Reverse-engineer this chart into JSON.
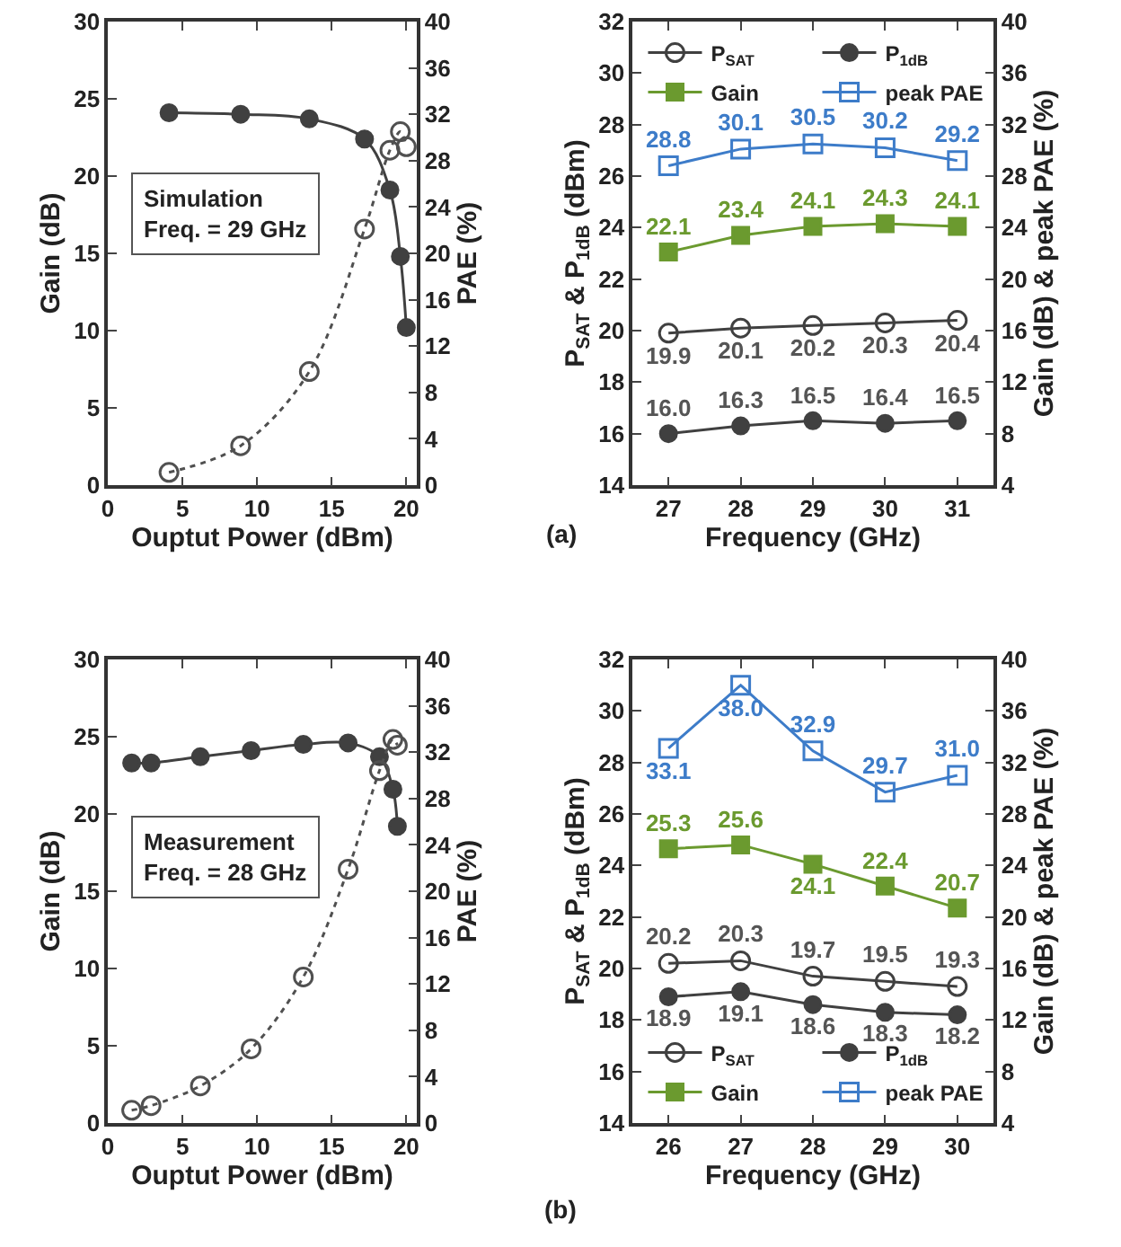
{
  "chart_data": [
    {
      "type": "line",
      "xlabel": "Ouptut Power (dBm)",
      "ylabel": "Gain (dB)",
      "y2label": "PAE (%)",
      "x": [
        4.1,
        8.9,
        13.5,
        17.2,
        18.9,
        19.6,
        20.0
      ],
      "xlim": [
        0,
        20.7
      ],
      "xticks": [
        0,
        5,
        10,
        15,
        20
      ],
      "ylim": [
        0,
        30
      ],
      "yticks": [
        0,
        5,
        10,
        15,
        20,
        25,
        30
      ],
      "y2lim": [
        0,
        40
      ],
      "y2ticks": [
        0,
        4,
        8,
        12,
        16,
        20,
        24,
        28,
        32,
        36,
        40
      ],
      "grid": false,
      "legend": false,
      "annotations": [
        "Simulation\nFreq. = 29 GHz"
      ],
      "series": [
        {
          "color": "#404040",
          "marker": "circle",
          "line_style": "solid",
          "values": [
            24.1,
            24.0,
            23.7,
            22.4,
            19.1,
            14.8,
            10.2
          ]
        },
        {
          "color": "#505050",
          "marker": "circle-open",
          "line_style": "dotted",
          "axis": "y2",
          "values": [
            1.1,
            3.4,
            9.8,
            22.1,
            28.9,
            30.5,
            29.2
          ]
        }
      ]
    },
    {
      "type": "line",
      "xlabel": "Frequency (GHz)",
      "ylabel": "P$_{SAT}$ & P$_{1dB}$ (dBm)",
      "y2label": "Gain (dB) & peak PAE (%)",
      "x": [
        27,
        28,
        29,
        30,
        31
      ],
      "xlim": [
        26.5,
        31.5
      ],
      "xticks": [
        27,
        28,
        29,
        30,
        31
      ],
      "ylim": [
        14,
        32
      ],
      "yticks": [
        14,
        16,
        18,
        20,
        22,
        24,
        26,
        28,
        30,
        32
      ],
      "y2lim": [
        4,
        40
      ],
      "y2ticks": [
        4,
        8,
        12,
        16,
        20,
        24,
        28,
        32,
        36,
        40
      ],
      "grid": false,
      "legend": "top",
      "annotations": [
        "(a)"
      ],
      "series": [
        {
          "name": "P$_{SAT}$",
          "color": "#404040",
          "marker": "circle-open",
          "line_style": "solid",
          "values": [
            19.9,
            20.1,
            20.2,
            20.3,
            20.4
          ],
          "value_labels": [
            "19.9",
            "20.1",
            "20.2",
            "20.3",
            "20.4"
          ]
        },
        {
          "name": "P$_{1dB}$",
          "color": "#404040",
          "marker": "circle",
          "line_style": "solid",
          "values": [
            16.0,
            16.3,
            16.5,
            16.4,
            16.5
          ],
          "value_labels": [
            "16.0",
            "16.3",
            "16.5",
            "16.4",
            "16.5"
          ]
        },
        {
          "name": "Gain",
          "color": "#6b9a2f",
          "marker": "square",
          "line_style": "solid",
          "axis": "y2",
          "values": [
            22.1,
            23.4,
            24.1,
            24.3,
            24.1
          ],
          "value_labels": [
            "22.1",
            "23.4",
            "24.1",
            "24.3",
            "24.1"
          ]
        },
        {
          "name": "peak PAE",
          "color": "#3d7cc9",
          "marker": "square-open",
          "line_style": "solid",
          "axis": "y2",
          "values": [
            28.8,
            30.1,
            30.5,
            30.2,
            29.2
          ],
          "value_labels": [
            "28.8",
            "30.1",
            "30.5",
            "30.2",
            "29.2"
          ]
        }
      ]
    },
    {
      "type": "line",
      "xlabel": "Ouptut Power (dBm)",
      "ylabel": "Gain (dB)",
      "y2label": "PAE (%)",
      "x": [
        1.6,
        2.9,
        6.2,
        9.6,
        13.1,
        16.1,
        18.2,
        19.1,
        19.4
      ],
      "xlim": [
        0,
        20.7
      ],
      "xticks": [
        0,
        5,
        10,
        15,
        20
      ],
      "ylim": [
        0,
        30
      ],
      "yticks": [
        0,
        5,
        10,
        15,
        20,
        25,
        30
      ],
      "y2lim": [
        0,
        40
      ],
      "y2ticks": [
        0,
        4,
        8,
        12,
        16,
        20,
        24,
        28,
        32,
        36,
        40
      ],
      "grid": false,
      "legend": false,
      "annotations": [
        "Measurement\nFreq. = 28 GHz"
      ],
      "series": [
        {
          "color": "#404040",
          "marker": "circle",
          "line_style": "solid",
          "values": [
            23.3,
            23.3,
            23.7,
            24.1,
            24.5,
            24.6,
            23.7,
            21.6,
            19.2
          ]
        },
        {
          "color": "#505050",
          "marker": "circle-open",
          "line_style": "dotted",
          "axis": "y2",
          "values": [
            1.1,
            1.5,
            3.2,
            6.4,
            12.6,
            21.9,
            30.4,
            33.1,
            32.6
          ]
        }
      ]
    },
    {
      "type": "line",
      "xlabel": "Frequency (GHz)",
      "ylabel": "P$_{SAT}$ & P$_{1dB}$ (dBm)",
      "y2label": "Gain (dB) & peak PAE (%)",
      "x": [
        26,
        27,
        28,
        29,
        30
      ],
      "xlim": [
        25.5,
        30.5
      ],
      "xticks": [
        26,
        27,
        28,
        29,
        30
      ],
      "ylim": [
        14,
        32
      ],
      "yticks": [
        14,
        16,
        18,
        20,
        22,
        24,
        26,
        28,
        30,
        32
      ],
      "y2lim": [
        4,
        40
      ],
      "y2ticks": [
        4,
        8,
        12,
        16,
        20,
        24,
        28,
        32,
        36,
        40
      ],
      "grid": false,
      "legend": "bottom",
      "annotations": [
        "(b)"
      ],
      "series": [
        {
          "name": "P$_{SAT}$",
          "color": "#404040",
          "marker": "circle-open",
          "line_style": "solid",
          "values": [
            20.2,
            20.3,
            19.7,
            19.5,
            19.3
          ],
          "value_labels": [
            "20.2",
            "20.3",
            "19.7",
            "19.5",
            "19.3"
          ]
        },
        {
          "name": "P$_{1dB}$",
          "color": "#404040",
          "marker": "circle",
          "line_style": "solid",
          "values": [
            18.9,
            19.1,
            18.6,
            18.3,
            18.2
          ],
          "value_labels": [
            "18.9",
            "19.1",
            "18.6",
            "18.3",
            "18.2"
          ]
        },
        {
          "name": "Gain",
          "color": "#6b9a2f",
          "marker": "square",
          "line_style": "solid",
          "axis": "y2",
          "values": [
            25.3,
            25.6,
            24.1,
            22.4,
            20.7
          ],
          "value_labels": [
            "25.3",
            "25.6",
            "24.1",
            "22.4",
            "20.7"
          ]
        },
        {
          "name": "peak PAE",
          "color": "#3d7cc9",
          "marker": "square-open",
          "line_style": "solid",
          "axis": "y2",
          "values": [
            33.1,
            38.0,
            32.9,
            29.7,
            31.0
          ],
          "value_labels": [
            "33.1",
            "38.0",
            "32.9",
            "29.7",
            "31.0"
          ]
        }
      ]
    }
  ]
}
